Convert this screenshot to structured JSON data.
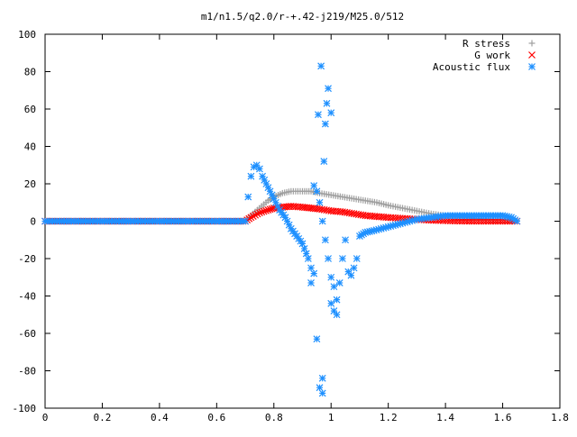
{
  "chart_data": {
    "type": "scatter",
    "title": "m1/n1.5/q2.0/r-+.42-j219/M25.0/512",
    "xlabel": "",
    "ylabel": "",
    "xlim": [
      0,
      1.8
    ],
    "ylim": [
      -100,
      100
    ],
    "grid": false,
    "legend_position": "top-right",
    "x_ticks": [
      "0",
      "0.2",
      "0.4",
      "0.6",
      "0.8",
      "1",
      "1.2",
      "1.4",
      "1.6",
      "1.8"
    ],
    "y_ticks": [
      "100",
      "80",
      "60",
      "40",
      "20",
      "0",
      "-20",
      "-40",
      "-60",
      "-80",
      "-100"
    ],
    "series": [
      {
        "name": "R stress",
        "marker": "plus",
        "color": "#a0a0a0",
        "x": [
          0,
          0.1,
          0.2,
          0.3,
          0.4,
          0.5,
          0.6,
          0.7,
          0.72,
          0.75,
          0.78,
          0.8,
          0.83,
          0.86,
          0.9,
          0.93,
          0.96,
          1.0,
          1.04,
          1.08,
          1.12,
          1.16,
          1.2,
          1.25,
          1.3,
          1.35,
          1.4,
          1.45,
          1.5,
          1.55,
          1.6,
          1.65
        ],
        "y": [
          0,
          0,
          0,
          0,
          0,
          0,
          0,
          0,
          3,
          7,
          11,
          13,
          15,
          16,
          16,
          16,
          15,
          14,
          13,
          12,
          11,
          10,
          8.5,
          7,
          5.5,
          4,
          3,
          2,
          1.5,
          1,
          0.6,
          0.3
        ]
      },
      {
        "name": "G work",
        "marker": "cross",
        "color": "#ff0000",
        "x": [
          0,
          0.1,
          0.2,
          0.3,
          0.4,
          0.5,
          0.6,
          0.7,
          0.72,
          0.75,
          0.78,
          0.8,
          0.83,
          0.86,
          0.9,
          0.93,
          0.96,
          1.0,
          1.04,
          1.08,
          1.12,
          1.16,
          1.2,
          1.25,
          1.3,
          1.35,
          1.4,
          1.45,
          1.5,
          1.55,
          1.6,
          1.65
        ],
        "y": [
          0,
          0,
          0,
          0,
          0,
          0,
          0,
          0,
          2,
          4.5,
          6,
          7,
          7.5,
          8,
          7.5,
          7,
          6.5,
          5.5,
          5,
          4,
          3,
          2.5,
          2,
          1.5,
          1,
          0.5,
          0.3,
          0.1,
          0,
          0,
          0,
          0
        ]
      },
      {
        "name": "Acoustic flux",
        "marker": "star",
        "color": "#1e90ff",
        "x": [
          0,
          0.05,
          0.1,
          0.15,
          0.2,
          0.25,
          0.3,
          0.35,
          0.4,
          0.45,
          0.5,
          0.55,
          0.6,
          0.65,
          0.7,
          0.71,
          0.72,
          0.73,
          0.74,
          0.75,
          0.76,
          0.78,
          0.8,
          0.82,
          0.84,
          0.86,
          0.88,
          0.9,
          0.92,
          0.93,
          0.94,
          0.95,
          0.96,
          0.97,
          0.98,
          0.99,
          1.0,
          1.0,
          1.01,
          1.02,
          1.03,
          1.04,
          1.05,
          1.06,
          1.07,
          1.08,
          1.09,
          1.1,
          1.12,
          1.15,
          1.2,
          1.25,
          1.3,
          1.35,
          1.4,
          1.45,
          1.5,
          1.55,
          1.6,
          1.63,
          1.65,
          0.95,
          0.96,
          0.97,
          0.975,
          0.98,
          0.99,
          1.0,
          0.955,
          0.965,
          0.985,
          0.93,
          0.94,
          1.01,
          1.02,
          0.97
        ],
        "y": [
          0,
          0,
          0,
          0,
          0,
          0,
          0,
          0,
          0,
          0,
          0,
          0,
          0,
          0,
          0,
          13,
          24,
          29,
          30,
          28,
          24,
          18,
          12,
          6,
          2,
          -4,
          -8,
          -12,
          -20,
          -25,
          19,
          16,
          10,
          0,
          -10,
          -20,
          -30,
          -44,
          -35,
          -42,
          -33,
          -20,
          -10,
          -27,
          -29,
          -25,
          -20,
          -8,
          -6,
          -5,
          -3,
          -1,
          1,
          2,
          3,
          3,
          3,
          3,
          3,
          2,
          0,
          -63,
          -89,
          -84,
          32,
          52,
          71,
          58,
          57,
          83,
          63,
          -33,
          -28,
          -48,
          -50,
          -92
        ]
      }
    ]
  }
}
